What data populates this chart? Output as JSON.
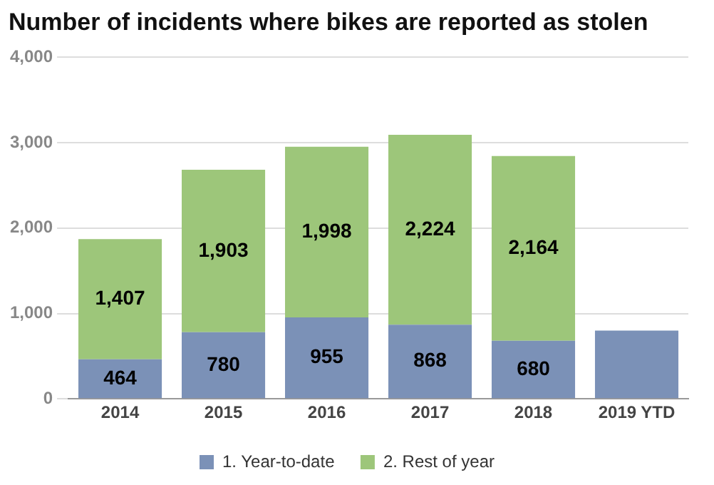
{
  "chart_data": {
    "type": "bar",
    "title": "Number of incidents where bikes are reported as stolen",
    "categories": [
      "2014",
      "2015",
      "2016",
      "2017",
      "2018",
      "2019 YTD"
    ],
    "stacked": true,
    "series": [
      {
        "name": "1. Year-to-date",
        "color": "#7b91b7",
        "values": [
          464,
          780,
          955,
          868,
          680,
          800
        ],
        "value_labels": [
          "464",
          "780",
          "955",
          "868",
          "680",
          null
        ]
      },
      {
        "name": "2. Rest of year",
        "color": "#9dc67a",
        "values": [
          1407,
          1903,
          1998,
          2224,
          2164,
          null
        ],
        "value_labels": [
          "1,407",
          "1,903",
          "1,998",
          "2,224",
          "2,164",
          null
        ]
      }
    ],
    "ylim": [
      0,
      4000
    ],
    "yticks": [
      0,
      {
        "value": 1000,
        "label": "1,000"
      },
      {
        "value": 2000,
        "label": "2,000"
      },
      {
        "value": 3000,
        "label": "3,000"
      },
      {
        "value": 4000,
        "label": "4,000"
      }
    ],
    "grid": "y",
    "legend": "bottom"
  }
}
